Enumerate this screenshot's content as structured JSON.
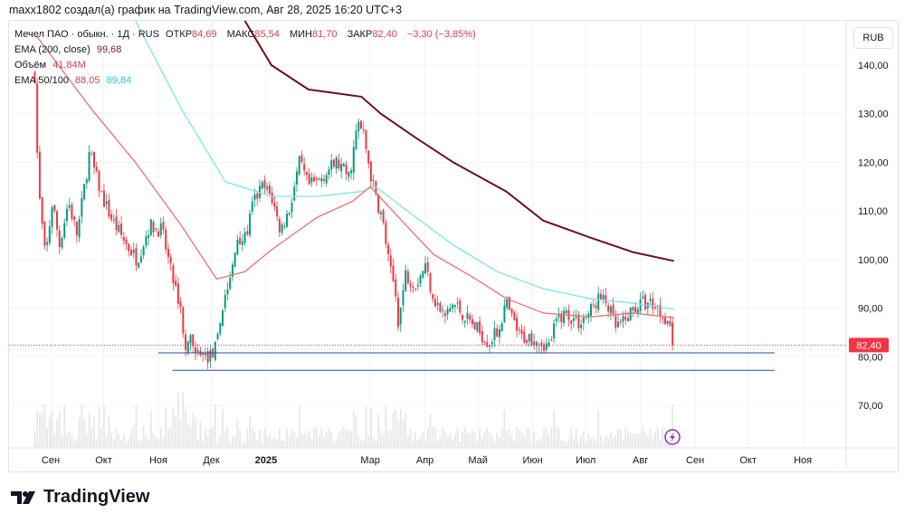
{
  "caption": "maxx1802 создал(а) график на TradingView.com, Авг 28, 2025 16:20 UTC+3",
  "legend": {
    "symbol": "Мечел ПАО · обыкн. · 1Д · RUS",
    "open_label": "ОТКР",
    "open": "84,69",
    "high_label": "МАКС",
    "high": "85,54",
    "low_label": "МИН",
    "low": "81,70",
    "close_label": "ЗАКР",
    "close": "82,40",
    "change": "−3,30 (−3,85%)",
    "ema200_label": "EMA (200, close)",
    "ema200": "99,68",
    "volume_label": "Объём",
    "volume": "41,84M",
    "ema_label": "EMA 50/100",
    "ema50": "88,05",
    "ema100": "89,84"
  },
  "currency_button": "RUB",
  "brand": "TradingView",
  "chart_data": {
    "type": "candlestick",
    "title": "Мечел ПАО · обыкн. · 1Д",
    "x_unit": "days since 2024-09-01",
    "ylim": [
      60,
      150
    ],
    "y_ticks": [
      {
        "v": 140,
        "label": "140,00"
      },
      {
        "v": 130,
        "label": "130,00"
      },
      {
        "v": 120,
        "label": "120,00"
      },
      {
        "v": 110,
        "label": "110,00"
      },
      {
        "v": 100,
        "label": "100,00"
      },
      {
        "v": 90,
        "label": "90,00"
      },
      {
        "v": 80,
        "label": "80,00"
      },
      {
        "v": 70,
        "label": "70,00"
      }
    ],
    "x_ticks": [
      {
        "d": 0,
        "label": "Сен"
      },
      {
        "d": 30,
        "label": "Окт"
      },
      {
        "d": 61,
        "label": "Ноя"
      },
      {
        "d": 91,
        "label": "Дек"
      },
      {
        "d": 122,
        "label": "2025"
      },
      {
        "d": 181,
        "label": "Мар"
      },
      {
        "d": 212,
        "label": "Апр"
      },
      {
        "d": 242,
        "label": "Май"
      },
      {
        "d": 273,
        "label": "Июн"
      },
      {
        "d": 303,
        "label": "Июл"
      },
      {
        "d": 334,
        "label": "Авг"
      },
      {
        "d": 365,
        "label": "Сен"
      },
      {
        "d": 395,
        "label": "Окт"
      },
      {
        "d": 426,
        "label": "Ноя"
      }
    ],
    "close_path": [
      [
        -9,
        138
      ],
      [
        -7,
        115
      ],
      [
        -3,
        100
      ],
      [
        1,
        112
      ],
      [
        5,
        103
      ],
      [
        10,
        112
      ],
      [
        15,
        105
      ],
      [
        22,
        122
      ],
      [
        25,
        118
      ],
      [
        29,
        113
      ],
      [
        35,
        108
      ],
      [
        43,
        103
      ],
      [
        49,
        100
      ],
      [
        56,
        107
      ],
      [
        63,
        106
      ],
      [
        69,
        96
      ],
      [
        74,
        90
      ],
      [
        76,
        80
      ],
      [
        80,
        84
      ],
      [
        84,
        80
      ],
      [
        90,
        80
      ],
      [
        94,
        82
      ],
      [
        98,
        92
      ],
      [
        102,
        96
      ],
      [
        106,
        105
      ],
      [
        110,
        104
      ],
      [
        115,
        112
      ],
      [
        120,
        115
      ],
      [
        125,
        113
      ],
      [
        130,
        106
      ],
      [
        135,
        110
      ],
      [
        141,
        120
      ],
      [
        146,
        115
      ],
      [
        151,
        116
      ],
      [
        156,
        118
      ],
      [
        162,
        120
      ],
      [
        169,
        117
      ],
      [
        174,
        128
      ],
      [
        177,
        126
      ],
      [
        181,
        118
      ],
      [
        184,
        113
      ],
      [
        188,
        108
      ],
      [
        192,
        98
      ],
      [
        195,
        94
      ],
      [
        197,
        87
      ],
      [
        201,
        97
      ],
      [
        207,
        95
      ],
      [
        212,
        99
      ],
      [
        217,
        92
      ],
      [
        223,
        88
      ],
      [
        228,
        91
      ],
      [
        233,
        89
      ],
      [
        238,
        87
      ],
      [
        243,
        85
      ],
      [
        248,
        83
      ],
      [
        253,
        85
      ],
      [
        258,
        91
      ],
      [
        261,
        88
      ],
      [
        266,
        84
      ],
      [
        274,
        84
      ],
      [
        282,
        82
      ],
      [
        287,
        88
      ],
      [
        292,
        89
      ],
      [
        299,
        87
      ],
      [
        305,
        89
      ],
      [
        310,
        92
      ],
      [
        315,
        91
      ],
      [
        320,
        86
      ],
      [
        325,
        87
      ],
      [
        330,
        90
      ],
      [
        335,
        91
      ],
      [
        341,
        91
      ],
      [
        346,
        89
      ],
      [
        351,
        87
      ],
      [
        353,
        82.4
      ]
    ],
    "series": [
      {
        "name": "EMA 200",
        "color": "#6b0f1a",
        "points": [
          [
            110,
            150
          ],
          [
            125,
            140
          ],
          [
            146,
            135
          ],
          [
            176,
            133.5
          ],
          [
            187,
            130
          ],
          [
            207,
            125
          ],
          [
            228,
            120
          ],
          [
            258,
            114
          ],
          [
            279,
            108
          ],
          [
            305,
            104.6
          ],
          [
            330,
            101.5
          ],
          [
            353,
            99.7
          ]
        ]
      },
      {
        "name": "EMA 100",
        "color": "#7fe3ea",
        "points": [
          [
            48,
            150
          ],
          [
            74,
            131
          ],
          [
            99,
            116
          ],
          [
            125,
            113
          ],
          [
            151,
            113
          ],
          [
            176,
            114
          ],
          [
            184,
            115
          ],
          [
            202,
            110
          ],
          [
            228,
            103
          ],
          [
            253,
            97.5
          ],
          [
            279,
            94
          ],
          [
            305,
            92
          ],
          [
            330,
            91
          ],
          [
            353,
            89.8
          ]
        ]
      },
      {
        "name": "EMA 50",
        "color": "#e57373",
        "points": [
          [
            -8,
            146
          ],
          [
            23,
            131
          ],
          [
            48,
            120
          ],
          [
            74,
            107
          ],
          [
            94,
            96
          ],
          [
            110,
            97.5
          ],
          [
            125,
            102
          ],
          [
            151,
            108.7
          ],
          [
            171,
            112
          ],
          [
            181,
            115
          ],
          [
            197,
            108.7
          ],
          [
            217,
            101
          ],
          [
            238,
            96.6
          ],
          [
            258,
            92
          ],
          [
            279,
            89
          ],
          [
            305,
            88.2
          ],
          [
            330,
            89
          ],
          [
            353,
            88
          ]
        ]
      }
    ],
    "horizontal_lines": [
      {
        "price": 80.8,
        "from": 61,
        "to": 410,
        "color": "#2a4d8f"
      },
      {
        "price": 77.2,
        "from": 69,
        "to": 410,
        "color": "#2a4d8f"
      }
    ],
    "last_price": {
      "value": 82.4,
      "label": "82,40",
      "color": "#f23645"
    },
    "up_color": "#089981",
    "down_color": "#f23645"
  }
}
